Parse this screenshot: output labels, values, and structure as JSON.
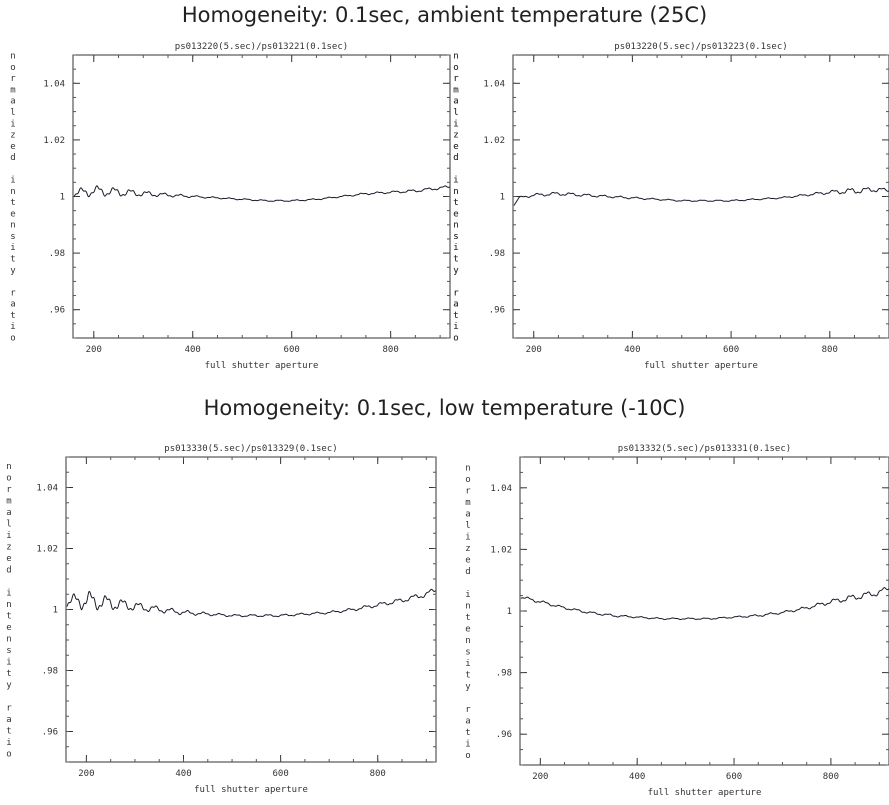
{
  "sections": [
    {
      "title": "Homogeneity: 0.1sec,  ambient temperature (25C)"
    },
    {
      "title": "Homogeneity: 0.1sec,  low temperature (-10C)"
    }
  ],
  "chart_data": [
    {
      "type": "line",
      "title": "ps013220(5.sec)/ps013221(0.1sec)",
      "xlabel": "full shutter aperture",
      "ylabel": "normalized intensity ratio",
      "xlim": [
        158,
        920
      ],
      "ylim": [
        0.95,
        1.05
      ],
      "xticks": [
        200,
        400,
        600,
        800
      ],
      "yticks": [
        0.96,
        0.98,
        1,
        1.02,
        1.04
      ],
      "ytick_labels": [
        ".96",
        ".98",
        "1",
        "1.02",
        "1.04"
      ],
      "series": [
        {
          "x": [
            160,
            200,
            250,
            300,
            350,
            400,
            450,
            500,
            550,
            600,
            650,
            700,
            750,
            800,
            850,
            900,
            920
          ],
          "y": [
            1.001,
            1.002,
            1.0015,
            1.001,
            1.0005,
            1.0,
            0.9995,
            0.999,
            0.9985,
            0.9985,
            0.999,
            1.0,
            1.001,
            1.0015,
            1.002,
            1.003,
            1.0035
          ],
          "ripple": [
            0.0012,
            0.0015,
            0.0012,
            0.0008,
            0.0005,
            0.0003,
            0.0002,
            0.0002,
            0.0002,
            0.0002,
            0.0002,
            0.0002,
            0.0003,
            0.0003,
            0.0004,
            0.0004,
            0.0004
          ]
        }
      ]
    },
    {
      "type": "line",
      "title": "ps013220(5.sec)/ps013223(0.1sec)",
      "xlabel": "full shutter aperture",
      "ylabel": "normalized intensity ratio",
      "xlim": [
        158,
        920
      ],
      "ylim": [
        0.95,
        1.05
      ],
      "xticks": [
        200,
        400,
        600,
        800
      ],
      "yticks": [
        0.96,
        0.98,
        1,
        1.02,
        1.04
      ],
      "ytick_labels": [
        ".96",
        ".98",
        "1",
        "1.02",
        "1.04"
      ],
      "series": [
        {
          "x": [
            160,
            170,
            200,
            250,
            300,
            350,
            400,
            450,
            500,
            550,
            600,
            650,
            700,
            750,
            800,
            850,
            900,
            920
          ],
          "y": [
            0.997,
            0.9995,
            1.0005,
            1.001,
            1.0005,
            1.0,
            0.9995,
            0.999,
            0.9985,
            0.9985,
            0.9985,
            0.999,
            0.9995,
            1.0005,
            1.0015,
            1.002,
            1.0025,
            1.002
          ],
          "ripple": [
            0.0002,
            0.0003,
            0.0004,
            0.0005,
            0.0004,
            0.0003,
            0.0003,
            0.0002,
            0.0002,
            0.0002,
            0.0002,
            0.0002,
            0.0002,
            0.0003,
            0.0005,
            0.0009,
            0.0006,
            0.0004
          ]
        }
      ]
    },
    {
      "type": "line",
      "title": "ps013330(5.sec)/ps013329(0.1sec)",
      "xlabel": "full shutter aperture",
      "ylabel": "normalized intensity ratio",
      "xlim": [
        158,
        920
      ],
      "ylim": [
        0.95,
        1.05
      ],
      "xticks": [
        200,
        400,
        600,
        800
      ],
      "yticks": [
        0.96,
        0.98,
        1,
        1.02,
        1.04
      ],
      "ytick_labels": [
        ".96",
        ".98",
        "1",
        "1.02",
        "1.04"
      ],
      "series": [
        {
          "x": [
            160,
            200,
            250,
            300,
            350,
            400,
            450,
            500,
            550,
            600,
            650,
            700,
            750,
            800,
            850,
            900,
            920
          ],
          "y": [
            1.0025,
            1.003,
            1.002,
            1.001,
            1.0,
            0.999,
            0.9985,
            0.998,
            0.998,
            0.998,
            0.9985,
            0.999,
            1.0,
            1.0015,
            1.003,
            1.005,
            1.0065
          ],
          "ripple": [
            0.0015,
            0.0025,
            0.0018,
            0.0012,
            0.0008,
            0.0006,
            0.0004,
            0.0003,
            0.0003,
            0.0003,
            0.0003,
            0.0003,
            0.0004,
            0.0005,
            0.0006,
            0.0007,
            0.0007
          ]
        }
      ]
    },
    {
      "type": "line",
      "title": "ps013332(5.sec)/ps013331(0.1sec)",
      "xlabel": "full shutter aperture",
      "ylabel": "normalized intensity ratio",
      "xlim": [
        158,
        920
      ],
      "ylim": [
        0.95,
        1.05
      ],
      "xticks": [
        200,
        400,
        600,
        800
      ],
      "yticks": [
        0.96,
        0.98,
        1,
        1.02,
        1.04
      ],
      "ytick_labels": [
        ".96",
        ".98",
        "1",
        "1.02",
        "1.04"
      ],
      "series": [
        {
          "x": [
            160,
            200,
            250,
            300,
            350,
            400,
            450,
            500,
            550,
            600,
            650,
            700,
            750,
            800,
            850,
            900,
            920
          ],
          "y": [
            1.0045,
            1.003,
            1.001,
            0.9995,
            0.9985,
            0.998,
            0.9975,
            0.9975,
            0.9975,
            0.998,
            0.9985,
            0.9995,
            1.001,
            1.003,
            1.0045,
            1.006,
            1.0075
          ],
          "ripple": [
            0.0004,
            0.0004,
            0.0003,
            0.0003,
            0.0003,
            0.0002,
            0.0002,
            0.0002,
            0.0002,
            0.0002,
            0.0003,
            0.0003,
            0.0004,
            0.0006,
            0.0008,
            0.0008,
            0.0006
          ]
        }
      ]
    }
  ]
}
